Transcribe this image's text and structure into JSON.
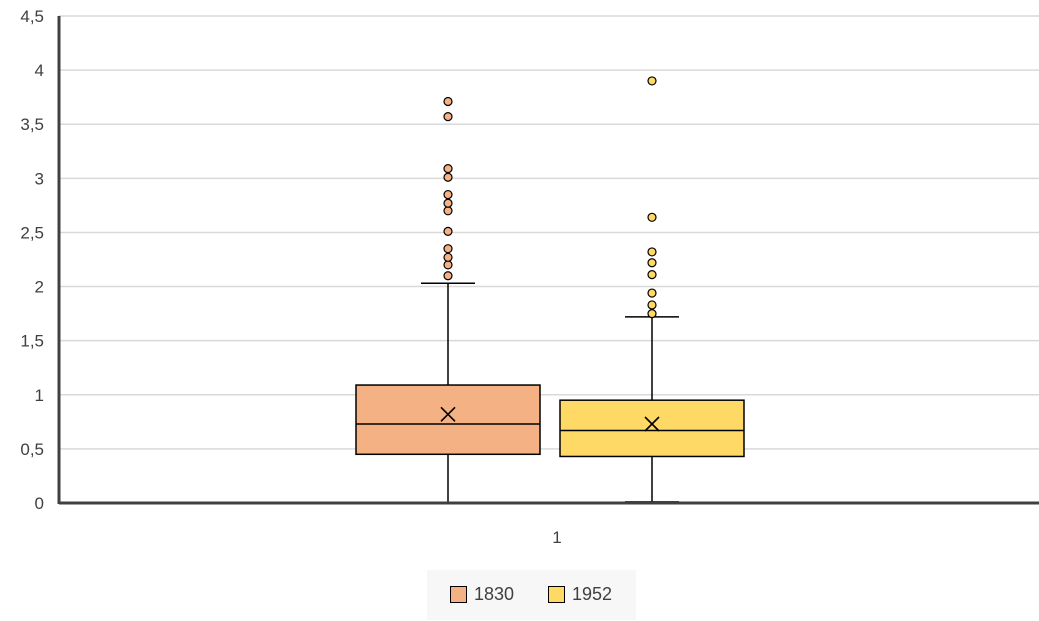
{
  "chart_data": {
    "type": "boxplot",
    "categories": [
      "1"
    ],
    "yaxis": {
      "min": 0,
      "max": 4.5,
      "step": 0.5,
      "tick_labels": [
        "0",
        "0,5",
        "1",
        "1,5",
        "2",
        "2,5",
        "3",
        "3,5",
        "4",
        "4,5"
      ]
    },
    "grid": true,
    "legend_position": "bottom",
    "series": [
      {
        "name": "1830",
        "color": "#F4B183",
        "outlier_color": "#F4B183",
        "min": 0,
        "q1": 0.45,
        "median": 0.73,
        "q3": 1.09,
        "max": 2.03,
        "mean": 0.82,
        "outliers": [
          2.1,
          2.2,
          2.27,
          2.35,
          2.51,
          2.7,
          2.77,
          2.85,
          3.01,
          3.09,
          3.57,
          3.71
        ]
      },
      {
        "name": "1952",
        "color": "#FFD966",
        "outlier_color": "#FFD966",
        "min": 0.01,
        "q1": 0.43,
        "median": 0.67,
        "q3": 0.95,
        "max": 1.72,
        "mean": 0.73,
        "outliers": [
          1.75,
          1.83,
          1.94,
          2.11,
          2.22,
          2.32,
          2.64,
          3.9
        ]
      }
    ]
  }
}
